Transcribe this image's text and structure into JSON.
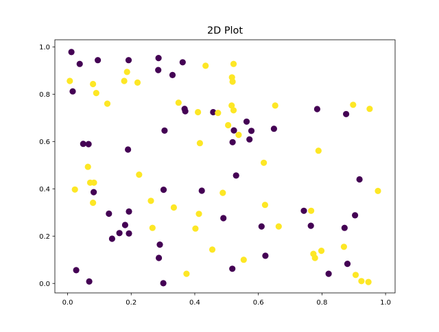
{
  "chart_data": {
    "type": "scatter",
    "title": "2D Plot",
    "xlabel": "",
    "ylabel": "",
    "xlim": [
      -0.04,
      1.03
    ],
    "ylim": [
      -0.04,
      1.03
    ],
    "xticks": [
      "0.0",
      "0.2",
      "0.4",
      "0.6",
      "0.8",
      "1.0"
    ],
    "yticks": [
      "0.0",
      "0.2",
      "0.4",
      "0.6",
      "0.8",
      "1.0"
    ],
    "grid": false,
    "legend": "none",
    "colors": {
      "class_0": "#440154",
      "class_1": "#fde725"
    },
    "series": [
      {
        "points": [
          [
            0.012,
            0.978
          ],
          [
            0.038,
            0.928
          ],
          [
            0.095,
            0.944
          ],
          [
            0.192,
            0.944
          ],
          [
            0.286,
            0.953
          ],
          [
            0.362,
            0.935
          ],
          [
            0.285,
            0.902
          ],
          [
            0.33,
            0.881
          ],
          [
            0.016,
            0.812
          ],
          [
            0.368,
            0.738
          ],
          [
            0.37,
            0.728
          ],
          [
            0.458,
            0.724
          ],
          [
            0.563,
            0.684
          ],
          [
            0.785,
            0.737
          ],
          [
            0.876,
            0.716
          ],
          [
            0.305,
            0.646
          ],
          [
            0.523,
            0.647
          ],
          [
            0.578,
            0.645
          ],
          [
            0.649,
            0.654
          ],
          [
            0.572,
            0.609
          ],
          [
            0.519,
            0.597
          ],
          [
            0.049,
            0.59
          ],
          [
            0.066,
            0.589
          ],
          [
            0.19,
            0.566
          ],
          [
            0.53,
            0.456
          ],
          [
            0.918,
            0.44
          ],
          [
            0.082,
            0.386
          ],
          [
            0.302,
            0.396
          ],
          [
            0.422,
            0.392
          ],
          [
            0.743,
            0.307
          ],
          [
            0.13,
            0.295
          ],
          [
            0.193,
            0.304
          ],
          [
            0.904,
            0.288
          ],
          [
            0.49,
            0.276
          ],
          [
            0.181,
            0.247
          ],
          [
            0.765,
            0.244
          ],
          [
            0.61,
            0.241
          ],
          [
            0.871,
            0.235
          ],
          [
            0.163,
            0.213
          ],
          [
            0.193,
            0.211
          ],
          [
            0.14,
            0.189
          ],
          [
            0.29,
            0.164
          ],
          [
            0.287,
            0.108
          ],
          [
            0.622,
            0.117
          ],
          [
            0.88,
            0.083
          ],
          [
            0.027,
            0.056
          ],
          [
            0.518,
            0.062
          ],
          [
            0.821,
            0.041
          ],
          [
            0.068,
            0.008
          ],
          [
            0.301,
            0.001
          ]
        ]
      },
      {
        "points": [
          [
            0.434,
            0.92
          ],
          [
            0.522,
            0.928
          ],
          [
            0.007,
            0.856
          ],
          [
            0.187,
            0.894
          ],
          [
            0.517,
            0.871
          ],
          [
            0.519,
            0.853
          ],
          [
            0.08,
            0.843
          ],
          [
            0.178,
            0.856
          ],
          [
            0.22,
            0.849
          ],
          [
            0.09,
            0.805
          ],
          [
            0.125,
            0.76
          ],
          [
            0.349,
            0.764
          ],
          [
            0.516,
            0.752
          ],
          [
            0.653,
            0.752
          ],
          [
            0.898,
            0.755
          ],
          [
            0.95,
            0.738
          ],
          [
            0.522,
            0.732
          ],
          [
            0.41,
            0.724
          ],
          [
            0.473,
            0.721
          ],
          [
            0.505,
            0.669
          ],
          [
            0.538,
            0.628
          ],
          [
            0.416,
            0.593
          ],
          [
            0.789,
            0.561
          ],
          [
            0.617,
            0.51
          ],
          [
            0.064,
            0.493
          ],
          [
            0.225,
            0.46
          ],
          [
            0.071,
            0.426
          ],
          [
            0.083,
            0.426
          ],
          [
            0.023,
            0.397
          ],
          [
            0.976,
            0.391
          ],
          [
            0.488,
            0.383
          ],
          [
            0.08,
            0.341
          ],
          [
            0.262,
            0.349
          ],
          [
            0.621,
            0.332
          ],
          [
            0.334,
            0.321
          ],
          [
            0.766,
            0.307
          ],
          [
            0.413,
            0.294
          ],
          [
            0.664,
            0.241
          ],
          [
            0.267,
            0.235
          ],
          [
            0.402,
            0.232
          ],
          [
            0.455,
            0.143
          ],
          [
            0.798,
            0.138
          ],
          [
            0.773,
            0.125
          ],
          [
            0.778,
            0.108
          ],
          [
            0.869,
            0.155
          ],
          [
            0.554,
            0.1
          ],
          [
            0.374,
            0.041
          ],
          [
            0.906,
            0.036
          ],
          [
            0.924,
            0.01
          ],
          [
            0.946,
            0.006
          ]
        ]
      }
    ]
  }
}
